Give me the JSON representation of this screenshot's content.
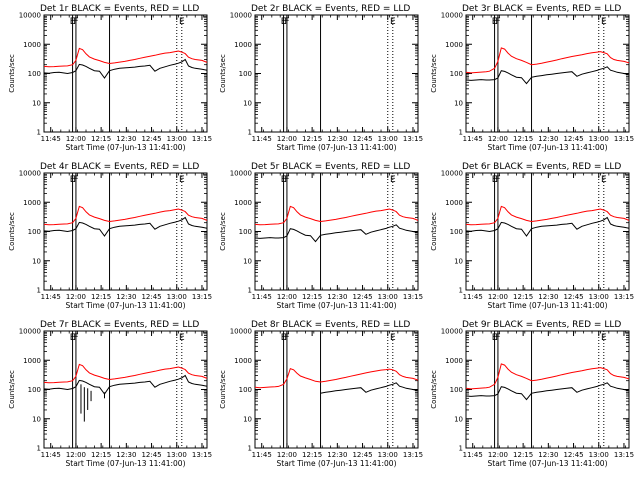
{
  "colors": {
    "events": "#000000",
    "lld": "#ff0000",
    "background": "#ffffff"
  },
  "chart_data": {
    "type": "line",
    "layout_grid": "3x3",
    "ylabel": "Counts/sec",
    "xlabel": "Start Time (07-Jun-13 11:41:00)",
    "yscale": "log",
    "ylim": [
      1,
      10000
    ],
    "y_ticks": [
      "1",
      "10",
      "100",
      "1000",
      "10000"
    ],
    "xlim_minutes_after_11_41": [
      0,
      97
    ],
    "x_ticks": [
      {
        "label": "11:45",
        "minute": 4
      },
      {
        "label": "12:00",
        "minute": 19
      },
      {
        "label": "12:15",
        "minute": 34
      },
      {
        "label": "12:30",
        "minute": 49
      },
      {
        "label": "12:45",
        "minute": 64
      },
      {
        "label": "13:00",
        "minute": 79
      },
      {
        "label": "13:15",
        "minute": 94
      }
    ],
    "solid_markers": [
      {
        "minute": 17,
        "label": "E"
      },
      {
        "minute": 19,
        "label": "F"
      },
      {
        "minute": 39,
        "label": ""
      }
    ],
    "dotted_markers": [
      {
        "minute": 79,
        "label": ""
      },
      {
        "minute": 82,
        "label": "E"
      }
    ],
    "x_minutes": [
      0,
      3,
      6,
      9,
      12,
      14,
      17,
      19,
      21,
      23,
      25,
      27,
      30,
      33,
      36,
      39,
      42,
      45,
      48,
      51,
      54,
      57,
      60,
      63,
      66,
      69,
      72,
      75,
      78,
      80,
      82,
      84,
      86,
      88,
      90,
      94,
      97
    ],
    "panels": [
      {
        "title": "Det 1r BLACK = Events, RED = LLD",
        "series": [
          {
            "name": "Events",
            "color": "#000000",
            "values": [
              105,
              102,
              108,
              110,
              104,
              100,
              108,
              125,
              205,
              195,
              175,
              150,
              125,
              120,
              70,
              125,
              140,
              150,
              155,
              160,
              165,
              175,
              180,
              190,
              120,
              150,
              170,
              190,
              210,
              225,
              250,
              300,
              180,
              160,
              150,
              140,
              130
            ]
          },
          {
            "name": "LLD",
            "color": "#ff0000",
            "values": [
              175,
              170,
              172,
              178,
              180,
              182,
              200,
              280,
              720,
              650,
              470,
              370,
              310,
              275,
              240,
              220,
              230,
              245,
              260,
              280,
              300,
              330,
              360,
              390,
              420,
              460,
              500,
              520,
              560,
              590,
              540,
              480,
              360,
              320,
              300,
              280,
              240
            ]
          }
        ]
      },
      {
        "title": "Det 2r BLACK = Events, RED = LLD",
        "series": []
      },
      {
        "title": "Det 3r BLACK = Events, RED = LLD",
        "series": [
          {
            "name": "Events",
            "color": "#000000",
            "values": [
              60,
              58,
              60,
              62,
              60,
              60,
              62,
              70,
              125,
              118,
              105,
              90,
              75,
              72,
              45,
              74,
              80,
              85,
              90,
              95,
              100,
              105,
              110,
              115,
              80,
              95,
              105,
              115,
              128,
              140,
              150,
              170,
              130,
              120,
              110,
              100,
              90
            ]
          },
          {
            "name": "LLD",
            "color": "#ff0000",
            "values": [
              110,
              105,
              108,
              112,
              115,
              120,
              150,
              260,
              750,
              680,
              500,
              390,
              320,
              280,
              240,
              200,
              210,
              225,
              245,
              265,
              290,
              320,
              350,
              380,
              410,
              440,
              480,
              510,
              540,
              560,
              520,
              470,
              350,
              300,
              280,
              260,
              230
            ]
          }
        ]
      },
      {
        "title": "Det 4r BLACK = Events, RED = LLD",
        "series": [
          {
            "name": "Events",
            "color": "#000000",
            "values": [
              105,
              102,
              108,
              110,
              104,
              100,
              108,
              125,
              205,
              195,
              175,
              150,
              125,
              120,
              70,
              125,
              140,
              150,
              155,
              160,
              165,
              175,
              180,
              190,
              120,
              150,
              170,
              190,
              210,
              225,
              250,
              300,
              180,
              160,
              150,
              140,
              130
            ]
          },
          {
            "name": "LLD",
            "color": "#ff0000",
            "values": [
              175,
              170,
              172,
              178,
              180,
              182,
              200,
              280,
              720,
              650,
              470,
              370,
              310,
              275,
              240,
              220,
              230,
              245,
              260,
              280,
              300,
              330,
              360,
              390,
              420,
              460,
              500,
              520,
              560,
              590,
              540,
              480,
              360,
              320,
              300,
              280,
              240
            ]
          }
        ]
      },
      {
        "title": "Det 5r BLACK = Events, RED = LLD",
        "series": [
          {
            "name": "Events",
            "color": "#000000",
            "values": [
              60,
              58,
              60,
              62,
              60,
              60,
              62,
              70,
              125,
              118,
              105,
              90,
              75,
              72,
              45,
              74,
              80,
              85,
              90,
              95,
              100,
              105,
              110,
              115,
              80,
              95,
              105,
              115,
              128,
              140,
              150,
              170,
              130,
              120,
              110,
              100,
              90
            ]
          },
          {
            "name": "LLD",
            "color": "#ff0000",
            "values": [
              175,
              170,
              172,
              178,
              180,
              182,
              200,
              280,
              720,
              650,
              470,
              370,
              310,
              275,
              240,
              220,
              230,
              245,
              260,
              280,
              300,
              330,
              360,
              390,
              420,
              460,
              500,
              520,
              560,
              590,
              540,
              480,
              360,
              320,
              300,
              280,
              240
            ]
          }
        ]
      },
      {
        "title": "Det 6r BLACK = Events, RED = LLD",
        "series": [
          {
            "name": "Events",
            "color": "#000000",
            "values": [
              105,
              102,
              108,
              110,
              104,
              100,
              108,
              125,
              205,
              195,
              175,
              150,
              125,
              120,
              70,
              125,
              140,
              150,
              155,
              160,
              165,
              175,
              180,
              190,
              120,
              150,
              170,
              190,
              210,
              225,
              250,
              300,
              180,
              160,
              150,
              140,
              130
            ]
          },
          {
            "name": "LLD",
            "color": "#ff0000",
            "values": [
              175,
              170,
              172,
              178,
              180,
              182,
              200,
              280,
              720,
              650,
              470,
              370,
              310,
              275,
              240,
              220,
              230,
              245,
              260,
              280,
              300,
              330,
              360,
              390,
              420,
              460,
              500,
              520,
              560,
              590,
              540,
              480,
              360,
              320,
              300,
              280,
              240
            ]
          }
        ]
      },
      {
        "title": "Det 7r BLACK = Events, RED = LLD",
        "series": [
          {
            "name": "Events",
            "color": "#000000",
            "values": [
              105,
              102,
              108,
              110,
              104,
              100,
              108,
              125,
              205,
              195,
              175,
              150,
              125,
              120,
              70,
              125,
              140,
              150,
              155,
              160,
              165,
              175,
              180,
              190,
              120,
              150,
              170,
              190,
              210,
              225,
              250,
              300,
              180,
              160,
              150,
              140,
              130
            ]
          },
          {
            "name": "LLD",
            "color": "#ff0000",
            "values": [
              175,
              170,
              172,
              178,
              180,
              182,
              200,
              280,
              720,
              650,
              470,
              370,
              310,
              275,
              240,
              220,
              230,
              245,
              260,
              280,
              300,
              330,
              360,
              390,
              420,
              460,
              500,
              520,
              560,
              590,
              540,
              480,
              360,
              320,
              300,
              280,
              240
            ]
          }
        ]
      },
      {
        "title": "Det 8r BLACK = Events, RED = LLD",
        "series": [
          {
            "name": "Events",
            "color": "#000000",
            "values": [
              null,
              null,
              null,
              null,
              null,
              null,
              null,
              null,
              null,
              null,
              null,
              null,
              null,
              null,
              null,
              75,
              80,
              85,
              90,
              95,
              100,
              105,
              110,
              115,
              80,
              95,
              105,
              115,
              128,
              140,
              150,
              170,
              130,
              120,
              110,
              100,
              90
            ]
          },
          {
            "name": "LLD",
            "color": "#ff0000",
            "values": [
              120,
              115,
              118,
              122,
              125,
              128,
              150,
              230,
              520,
              470,
              360,
              290,
              250,
              220,
              190,
              180,
              190,
              205,
              220,
              240,
              260,
              285,
              310,
              340,
              370,
              400,
              430,
              460,
              480,
              500,
              470,
              420,
              320,
              280,
              260,
              240,
              210
            ]
          }
        ]
      },
      {
        "title": "Det 9r BLACK = Events, RED = LLD",
        "series": [
          {
            "name": "Events",
            "color": "#000000",
            "values": [
              60,
              58,
              60,
              62,
              60,
              60,
              62,
              70,
              125,
              118,
              105,
              90,
              75,
              72,
              45,
              74,
              80,
              85,
              90,
              95,
              100,
              105,
              110,
              115,
              80,
              95,
              105,
              115,
              128,
              140,
              150,
              170,
              130,
              120,
              110,
              100,
              90
            ]
          },
          {
            "name": "LLD",
            "color": "#ff0000",
            "values": [
              110,
              105,
              108,
              112,
              115,
              120,
              150,
              260,
              750,
              680,
              500,
              390,
              320,
              280,
              240,
              200,
              210,
              225,
              245,
              265,
              290,
              320,
              350,
              380,
              410,
              440,
              480,
              510,
              540,
              560,
              520,
              470,
              350,
              300,
              280,
              260,
              230
            ]
          }
        ]
      }
    ],
    "det8_dropouts": [
      {
        "minute": 22,
        "values": [
          150,
          15
        ]
      },
      {
        "minute": 24,
        "values": [
          120,
          8
        ]
      },
      {
        "minute": 26,
        "values": [
          110,
          20
        ]
      },
      {
        "minute": 28,
        "values": [
          90,
          40
        ]
      },
      {
        "minute": 36,
        "values": [
          80,
          50
        ]
      }
    ]
  }
}
